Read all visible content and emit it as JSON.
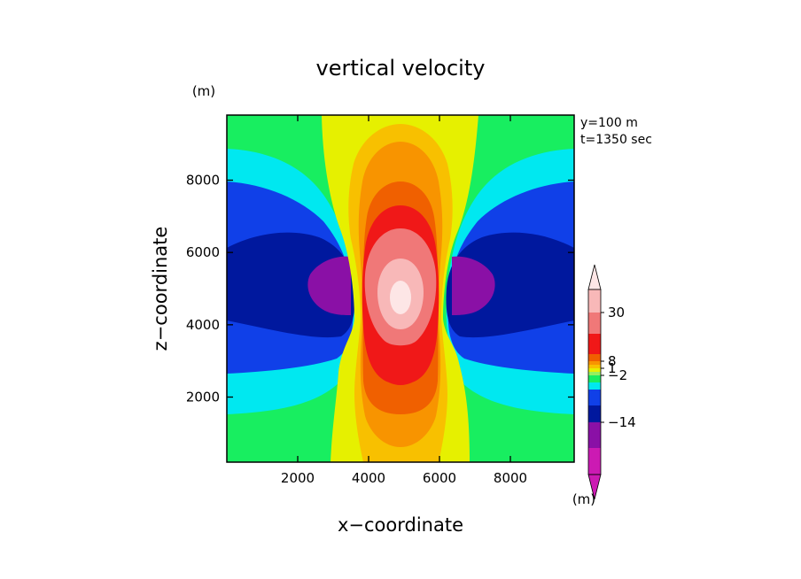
{
  "chart_data": {
    "type": "contour",
    "title": "vertical velocity",
    "xlabel": "x−coordinate",
    "ylabel": "z−coordinate",
    "x_unit": "(m)",
    "y_unit": "(m)",
    "xlim": [
      0,
      9800
    ],
    "ylim": [
      200,
      9800
    ],
    "x_ticks": [
      2000,
      4000,
      6000,
      8000
    ],
    "y_ticks": [
      2000,
      4000,
      6000,
      8000
    ],
    "x_tick_labels": [
      "2000",
      "4000",
      "6000",
      "8000"
    ],
    "y_tick_labels": [
      "2000",
      "4000",
      "6000",
      "8000"
    ],
    "annotations": [
      "y=100 m",
      "t=1350 sec"
    ],
    "colorbar": {
      "colors": [
        "#cc1ab3",
        "#8a10a6",
        "#00189e",
        "#1040e8",
        "#00e8f0",
        "#18ee60",
        "#96ee60",
        "#e6f000",
        "#f8c000",
        "#f89400",
        "#f06000",
        "#f01818",
        "#f07878",
        "#f8b8b8",
        "#fde6e6"
      ],
      "slot_heights": [
        26,
        24,
        23,
        8,
        4,
        4,
        4,
        4,
        8,
        8,
        18,
        19,
        29,
        30
      ],
      "tick_labels": [
        {
          "text": "30",
          "after_slot": 1
        },
        {
          "text": "8",
          "after_slot": 4
        },
        {
          "text": "1",
          "after_slot": 6
        },
        {
          "text": "−2",
          "after_slot": 8
        },
        {
          "text": "−14",
          "after_slot": 12
        }
      ]
    }
  }
}
